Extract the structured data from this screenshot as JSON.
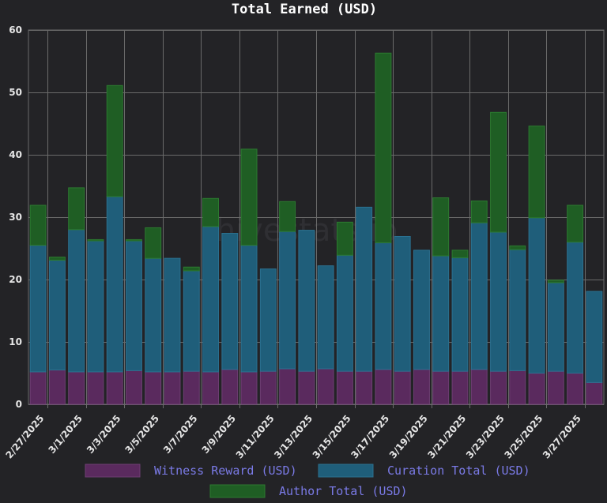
{
  "watermark": "hivestats.io",
  "chart_data": {
    "type": "bar",
    "stacked": true,
    "title": "Total Earned (USD)",
    "xlabel": "",
    "ylabel": "",
    "ylim": [
      0,
      60
    ],
    "y_ticks": [
      0,
      10,
      20,
      30,
      40,
      50,
      60
    ],
    "grid": true,
    "legend_position": "bottom",
    "categories": [
      "2/27/2025",
      "2/28/2025",
      "3/1/2025",
      "3/2/2025",
      "3/3/2025",
      "3/4/2025",
      "3/5/2025",
      "3/6/2025",
      "3/7/2025",
      "3/8/2025",
      "3/9/2025",
      "3/10/2025",
      "3/11/2025",
      "3/12/2025",
      "3/13/2025",
      "3/14/2025",
      "3/15/2025",
      "3/16/2025",
      "3/17/2025",
      "3/18/2025",
      "3/19/2025",
      "3/20/2025",
      "3/21/2025",
      "3/22/2025",
      "3/23/2025",
      "3/24/2025",
      "3/25/2025",
      "3/26/2025",
      "3/27/2025",
      "3/28/2025"
    ],
    "x_tick_labels": [
      "2/27/2025",
      "3/1/2025",
      "3/3/2025",
      "3/5/2025",
      "3/7/2025",
      "3/9/2025",
      "3/11/2025",
      "3/13/2025",
      "3/15/2025",
      "3/17/2025",
      "3/19/2025",
      "3/21/2025",
      "3/23/2025",
      "3/25/2025",
      "3/27/2025"
    ],
    "series": [
      {
        "name": "Witness Reward (USD)",
        "color": "#5a2a5e",
        "border": "#6e3f73",
        "values": [
          5.2,
          5.5,
          5.2,
          5.2,
          5.2,
          5.4,
          5.2,
          5.2,
          5.3,
          5.2,
          5.6,
          5.2,
          5.3,
          5.7,
          5.3,
          5.7,
          5.3,
          5.3,
          5.6,
          5.3,
          5.6,
          5.3,
          5.3,
          5.6,
          5.3,
          5.4,
          5.0,
          5.3,
          5.0,
          3.5
        ]
      },
      {
        "name": "Curation Total (USD)",
        "color": "#1f5e7a",
        "border": "#2b7190",
        "values": [
          20.3,
          17.6,
          22.8,
          21.0,
          28.1,
          20.8,
          18.2,
          18.2,
          16.1,
          23.3,
          21.8,
          20.3,
          16.4,
          22.0,
          22.6,
          16.5,
          18.6,
          26.3,
          20.3,
          21.6,
          19.1,
          18.5,
          18.2,
          23.5,
          22.3,
          19.4,
          24.9,
          14.2,
          21.0,
          14.6
        ]
      },
      {
        "name": "Author Total (USD)",
        "color": "#1f5e24",
        "border": "#2c7a30",
        "values": [
          6.4,
          0.5,
          6.7,
          0.2,
          17.8,
          0.2,
          4.9,
          0.0,
          0.6,
          4.5,
          0.0,
          15.4,
          0.0,
          4.8,
          0.0,
          0.0,
          5.3,
          0.0,
          30.4,
          0.0,
          0.0,
          9.3,
          1.2,
          3.5,
          19.2,
          0.6,
          14.7,
          0.4,
          5.9,
          0.0
        ]
      }
    ]
  }
}
